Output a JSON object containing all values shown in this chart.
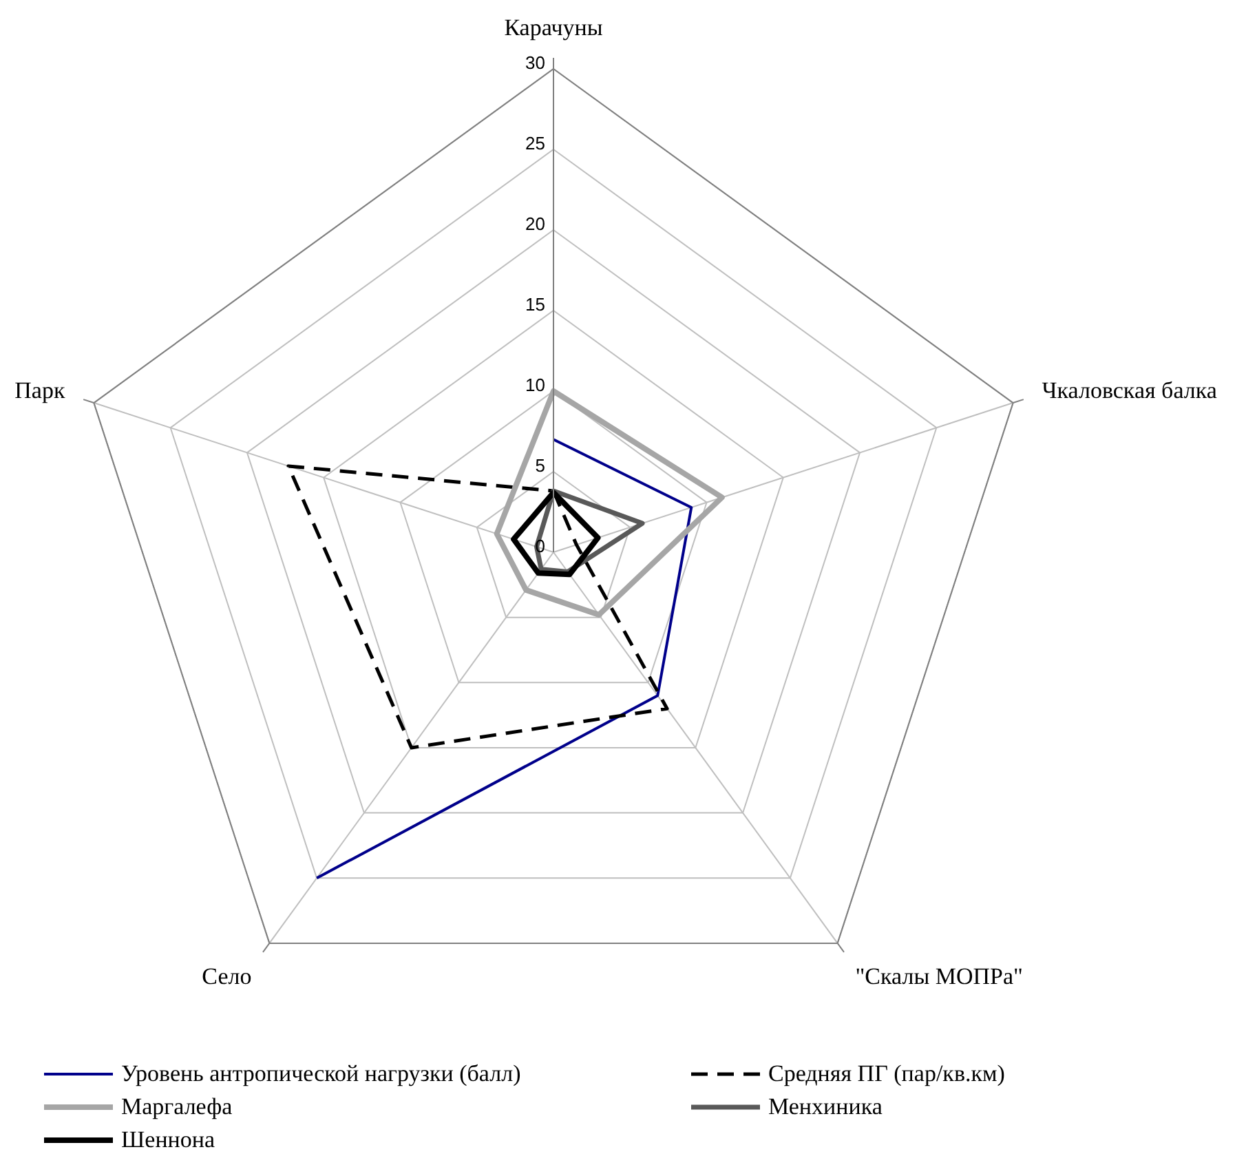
{
  "chart_data": {
    "type": "radar",
    "categories": [
      "Карачуны",
      "Чкаловская балка",
      "\"Скалы МОПРа\"",
      "Село",
      "Парк"
    ],
    "ylim": [
      0,
      30
    ],
    "yticks": [
      0,
      5,
      10,
      15,
      20,
      25,
      30
    ],
    "grid": true,
    "legend": "bottom",
    "marker": "none",
    "series": [
      {
        "name": "Уровень антропической нагрузки (балл)",
        "color": "#00008b",
        "values": [
          7,
          9,
          11,
          25,
          null
        ]
      },
      {
        "name": "Средняя ПГ (пар/кв.км)",
        "color": "#000000",
        "line_style": "dashed",
        "values": [
          3.8,
          1.5,
          12,
          15,
          17.3
        ]
      },
      {
        "name": "Маргалефа",
        "color": "#a6a6a6",
        "values": [
          10,
          11,
          4.8,
          2.9,
          3.7
        ]
      },
      {
        "name": "Менхиника",
        "color": "#595959",
        "values": [
          3.8,
          5.8,
          1.5,
          1.3,
          1.1
        ]
      },
      {
        "name": "Шеннона",
        "color": "#000000",
        "values": [
          3.7,
          2.9,
          1.7,
          1.6,
          2.6
        ]
      }
    ]
  }
}
